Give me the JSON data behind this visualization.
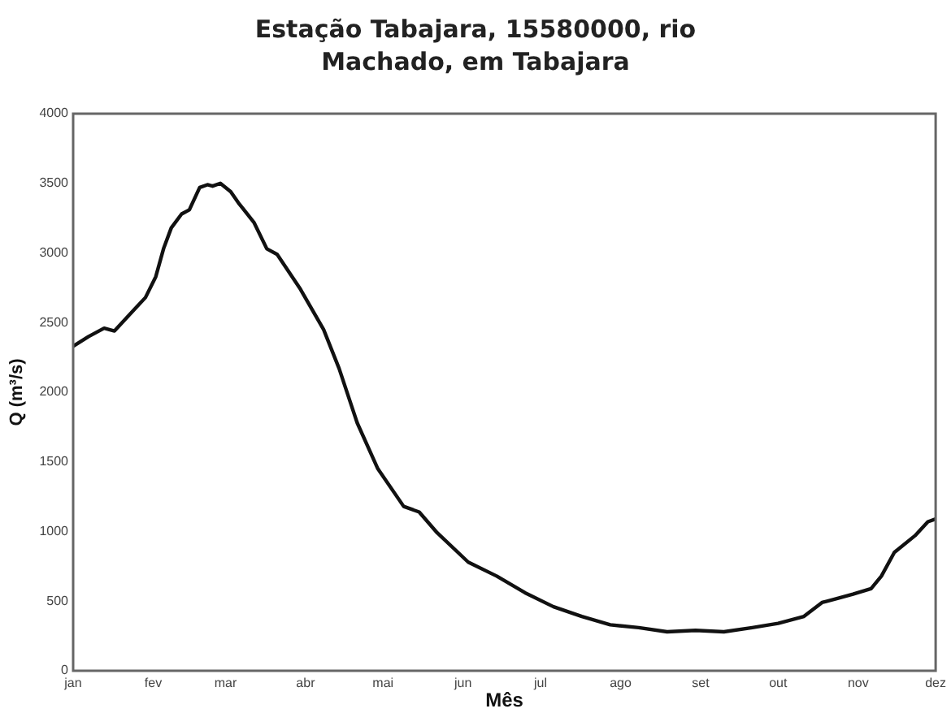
{
  "chart_data": {
    "type": "line",
    "title": "Estação Tabajara, 15580000, rio Machado, em Tabajara",
    "xlabel": "Mês",
    "ylabel": "Q (m³/s)",
    "x": [
      "--01-01",
      "--01-07",
      "--01-13",
      "--01-17",
      "--01-21",
      "--01-25",
      "--01-29",
      "--02-02",
      "--02-05",
      "--02-08",
      "--02-12",
      "--02-15",
      "--02-19",
      "--02-22",
      "--02-24",
      "--02-27",
      "--03-03",
      "--03-06",
      "--03-12",
      "--03-17",
      "--03-21",
      "--03-30",
      "--04-08",
      "--04-14",
      "--04-21",
      "--04-29",
      "--05-09",
      "--05-15",
      "--05-22",
      "--06-03",
      "--06-14",
      "--06-25",
      "--07-06",
      "--07-17",
      "--07-28",
      "--08-08",
      "--08-19",
      "--08-30",
      "--09-10",
      "--09-21",
      "--10-01",
      "--10-11",
      "--10-18",
      "--10-24",
      "--10-30",
      "--11-06",
      "--11-10",
      "--11-15",
      "--11-23",
      "--11-28",
      "--12-01"
    ],
    "series": [
      {
        "color": "#111111",
        "values": [
          2330,
          2400,
          2460,
          2440,
          2520,
          2600,
          2680,
          2830,
          3030,
          3180,
          3280,
          3310,
          3470,
          3490,
          3480,
          3500,
          3440,
          3360,
          3220,
          3030,
          2990,
          2740,
          2450,
          2170,
          1780,
          1450,
          1180,
          1140,
          990,
          780,
          680,
          560,
          460,
          390,
          330,
          310,
          280,
          290,
          280,
          310,
          340,
          390,
          490,
          520,
          550,
          590,
          680,
          850,
          970,
          1070,
          1090
        ]
      }
    ],
    "xlim": [
      "--01-01",
      "--12-01"
    ],
    "xticks": [
      {
        "value": "--01-01",
        "label": "jan"
      },
      {
        "value": "--02-01",
        "label": "fev"
      },
      {
        "value": "--03-01",
        "label": "mar"
      },
      {
        "value": "--04-01",
        "label": "abr"
      },
      {
        "value": "--05-01",
        "label": "mai"
      },
      {
        "value": "--06-01",
        "label": "jun"
      },
      {
        "value": "--07-01",
        "label": "jul"
      },
      {
        "value": "--08-01",
        "label": "ago"
      },
      {
        "value": "--09-01",
        "label": "set"
      },
      {
        "value": "--10-01",
        "label": "out"
      },
      {
        "value": "--11-01",
        "label": "nov"
      },
      {
        "value": "--12-01",
        "label": "dez"
      }
    ],
    "ylim": [
      0,
      4000
    ],
    "yticks": [
      0,
      500,
      1000,
      1500,
      2000,
      2500,
      3000,
      3500,
      4000
    ],
    "grid": false,
    "legend": false,
    "marker": "none",
    "line_style": "solid"
  }
}
